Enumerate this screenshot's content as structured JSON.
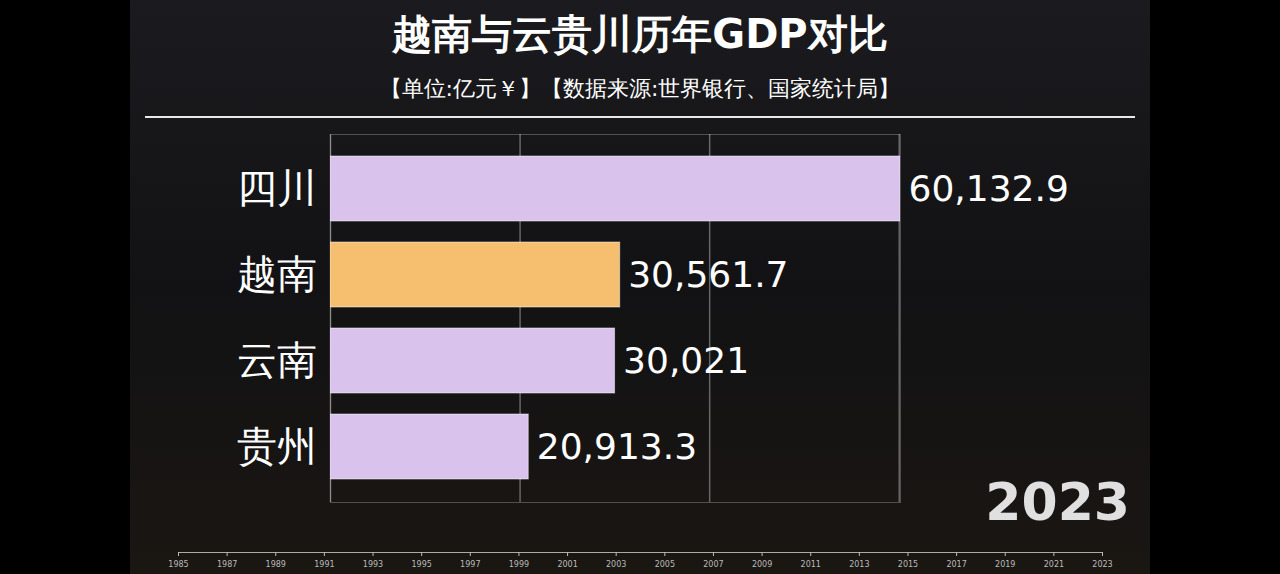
{
  "chart_data": {
    "type": "bar",
    "title": "越南与云贵川历年GDP对比",
    "subtitle": "【单位:亿元￥】【数据来源:世界银行、国家统计局】",
    "orientation": "horizontal",
    "categories": [
      "四川",
      "越南",
      "云南",
      "贵州"
    ],
    "values": [
      60132.9,
      30561.7,
      30021,
      20913.3
    ],
    "value_labels": [
      "60,132.9",
      "30,561.7",
      "30,021",
      "20,913.3"
    ],
    "colors": [
      "#d9c2ec",
      "#f5bf6f",
      "#d9c2ec",
      "#d9c2ec"
    ],
    "data_labels": true,
    "xlim": [
      0,
      60132.9
    ],
    "xticks": [
      0,
      20000,
      40000,
      60000
    ],
    "grid": true,
    "tick_labels": "y",
    "annotations": [
      "2023"
    ],
    "timeline": {
      "xlim": [
        1985,
        2023
      ],
      "xticks": [
        1985,
        1987,
        1989,
        1991,
        1993,
        1995,
        1997,
        1999,
        2001,
        2003,
        2005,
        2007,
        2009,
        2011,
        2013,
        2015,
        2017,
        2019,
        2021,
        2023
      ]
    }
  }
}
